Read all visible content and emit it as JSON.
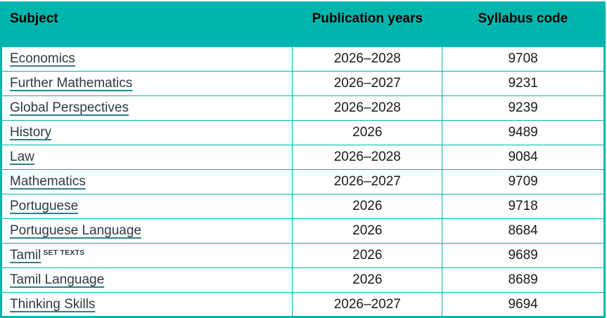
{
  "colors": {
    "teal": "#00b5ad",
    "header_text": "#000000",
    "body_text": "#1a1a1a",
    "link_text": "#2a3b44",
    "link_underline": "#2e7f8c"
  },
  "table": {
    "headers": [
      {
        "label": "Subject"
      },
      {
        "label": "Publication years"
      },
      {
        "label": "Syllabus code"
      }
    ],
    "rows": [
      {
        "subject": "Economics",
        "superscript": "",
        "publication_years": "2026–2028",
        "syllabus_code": "9708"
      },
      {
        "subject": "Further Mathematics",
        "superscript": "",
        "publication_years": "2026–2027",
        "syllabus_code": "9231"
      },
      {
        "subject": "Global Perspectives",
        "superscript": "",
        "publication_years": "2026–2028",
        "syllabus_code": "9239"
      },
      {
        "subject": "History",
        "superscript": "",
        "publication_years": "2026",
        "syllabus_code": "9489"
      },
      {
        "subject": "Law",
        "superscript": "",
        "publication_years": "2026–2028",
        "syllabus_code": "9084"
      },
      {
        "subject": "Mathematics",
        "superscript": "",
        "publication_years": "2026–2027",
        "syllabus_code": "9709"
      },
      {
        "subject": "Portuguese",
        "superscript": "",
        "publication_years": "2026",
        "syllabus_code": "9718"
      },
      {
        "subject": "Portuguese Language",
        "superscript": "",
        "publication_years": "2026",
        "syllabus_code": "8684"
      },
      {
        "subject": "Tamil",
        "superscript": "SET TEXTS",
        "publication_years": "2026",
        "syllabus_code": "9689"
      },
      {
        "subject": "Tamil Language",
        "superscript": "",
        "publication_years": "2026",
        "syllabus_code": "8689"
      },
      {
        "subject": "Thinking Skills",
        "superscript": "",
        "publication_years": "2026–2027",
        "syllabus_code": "9694"
      }
    ]
  }
}
